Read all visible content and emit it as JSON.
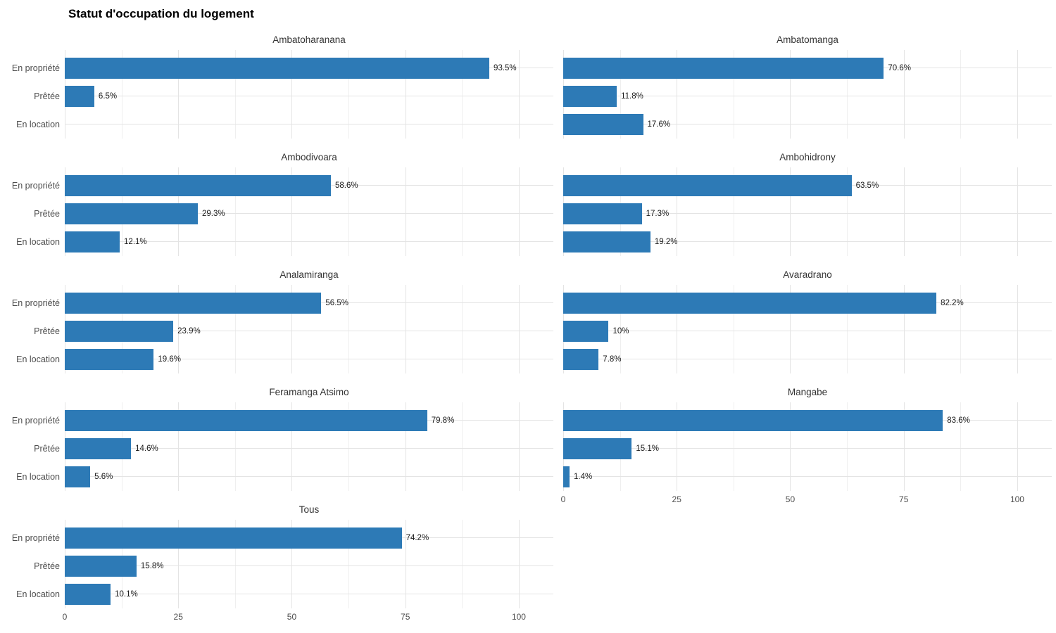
{
  "title": "Statut d'occupation du logement",
  "chart_data": {
    "type": "bar",
    "orientation": "horizontal",
    "title": "Statut d'occupation du logement",
    "categories": [
      "En propriété",
      "Prêtée",
      "En location"
    ],
    "xlim": [
      0,
      100
    ],
    "x_ticks": [
      "0",
      "25",
      "50",
      "75",
      "100"
    ],
    "grid": true,
    "legend": false,
    "bar_color": "#2d7ab6",
    "value_suffix": "%",
    "facets": [
      {
        "name": "Ambatoharanana",
        "values": [
          93.5,
          6.5,
          0
        ],
        "labels": [
          "93.5%",
          "6.5%",
          ""
        ]
      },
      {
        "name": "Ambatomanga",
        "values": [
          70.6,
          11.8,
          17.6
        ],
        "labels": [
          "70.6%",
          "11.8%",
          "17.6%"
        ]
      },
      {
        "name": "Ambodivoara",
        "values": [
          58.6,
          29.3,
          12.1
        ],
        "labels": [
          "58.6%",
          "29.3%",
          "12.1%"
        ]
      },
      {
        "name": "Ambohidrony",
        "values": [
          63.5,
          17.3,
          19.2
        ],
        "labels": [
          "63.5%",
          "17.3%",
          "19.2%"
        ]
      },
      {
        "name": "Analamiranga",
        "values": [
          56.5,
          23.9,
          19.6
        ],
        "labels": [
          "56.5%",
          "23.9%",
          "19.6%"
        ]
      },
      {
        "name": "Avaradrano",
        "values": [
          82.2,
          10,
          7.8
        ],
        "labels": [
          "82.2%",
          "10%",
          "7.8%"
        ]
      },
      {
        "name": "Feramanga Atsimo",
        "values": [
          79.8,
          14.6,
          5.6
        ],
        "labels": [
          "79.8%",
          "14.6%",
          "5.6%"
        ]
      },
      {
        "name": "Mangabe",
        "values": [
          83.6,
          15.1,
          1.4
        ],
        "labels": [
          "83.6%",
          "15.1%",
          "1.4%"
        ]
      },
      {
        "name": "Tous",
        "values": [
          74.2,
          15.8,
          10.1
        ],
        "labels": [
          "74.2%",
          "15.8%",
          "10.1%"
        ]
      }
    ]
  }
}
